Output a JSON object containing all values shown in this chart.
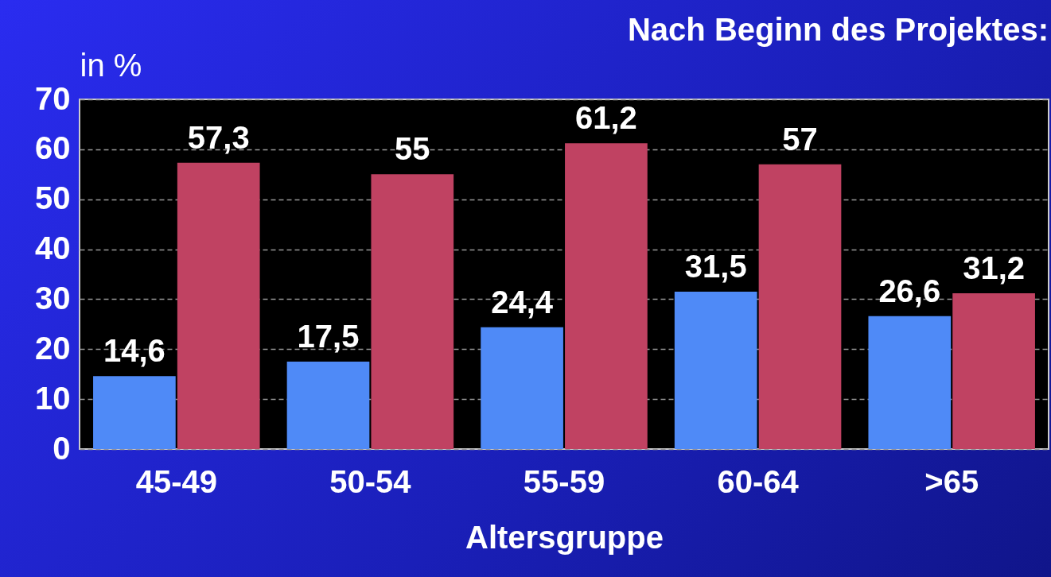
{
  "chart_data": {
    "type": "bar",
    "title": "Nach Beginn des Projektes:",
    "xlabel": "Altersgruppe",
    "ylabel": "in %",
    "categories": [
      "45-49",
      "50-54",
      "55-59",
      "60-64",
      ">65"
    ],
    "series": [
      {
        "color": "#4f8af7",
        "values": [
          14.6,
          17.5,
          24.4,
          31.5,
          26.6
        ],
        "value_labels": [
          "14,6",
          "17,5",
          "24,4",
          "31,5",
          "26,6"
        ]
      },
      {
        "color": "#c04262",
        "values": [
          57.3,
          55,
          61.2,
          57,
          31.2
        ],
        "value_labels": [
          "57,3",
          "55",
          "61,2",
          "57",
          "31,2"
        ]
      }
    ],
    "ylim": [
      0,
      70
    ],
    "yticks": [
      0,
      10,
      20,
      30,
      40,
      50,
      60,
      70
    ],
    "grid": "y",
    "legend": false
  }
}
